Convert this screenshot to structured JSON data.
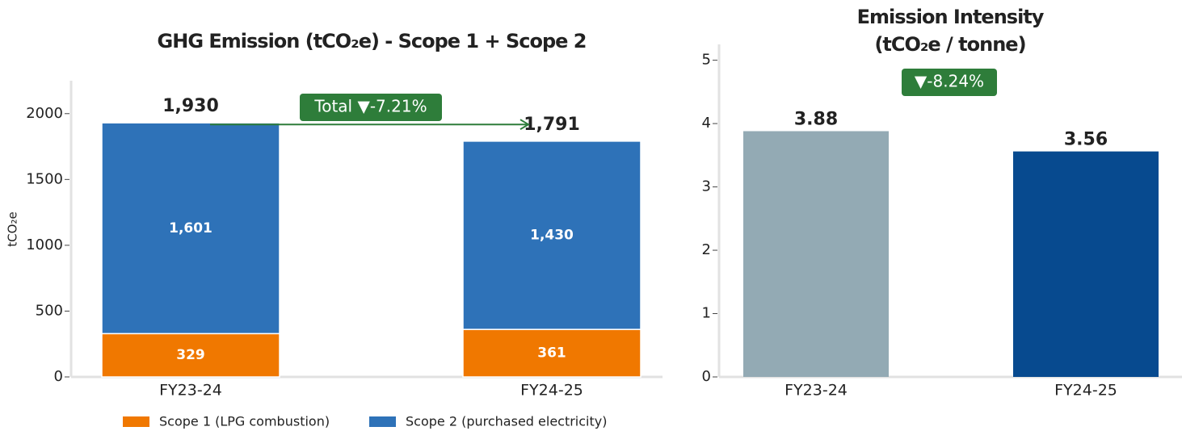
{
  "chart_data": [
    {
      "type": "stacked_bar",
      "title": "GHG Emission (tCO₂e) - Scope 1 + Scope 2",
      "y_label": "tCO₂e",
      "categories": [
        "FY23-24",
        "FY24-25"
      ],
      "series": [
        {
          "name": "Scope 1 (LPG combustion)",
          "color": "#f07800",
          "values": [
            329,
            361
          ],
          "value_labels": [
            "329",
            "361"
          ]
        },
        {
          "name": "Scope 2 (purchased electricity)",
          "color": "#2e72b8",
          "values": [
            1601,
            1430
          ],
          "value_labels": [
            "1,601",
            "1,430"
          ]
        }
      ],
      "totals": [
        1930,
        1791
      ],
      "total_labels": [
        "1,930",
        "1,791"
      ],
      "annotation": "Total ▼-7.21%",
      "annotation_color": "#2e7d3a",
      "ylim": [
        0,
        2250
      ],
      "yticks": [
        0,
        500,
        1000,
        1500,
        2000
      ],
      "legend": "bottom"
    },
    {
      "type": "bar",
      "title": "Emission Intensity",
      "subtitle": "(tCO₂e / tonne)",
      "categories": [
        "FY23-24",
        "FY24-25"
      ],
      "values": [
        3.88,
        3.56
      ],
      "colors": [
        "#93aab4",
        "#074a8f"
      ],
      "annotation": "▼-8.24%",
      "annotation_color": "#2e7d3a",
      "ylim": [
        0,
        5.25
      ],
      "yticks": [
        0,
        1,
        2,
        3,
        4,
        5
      ]
    }
  ]
}
